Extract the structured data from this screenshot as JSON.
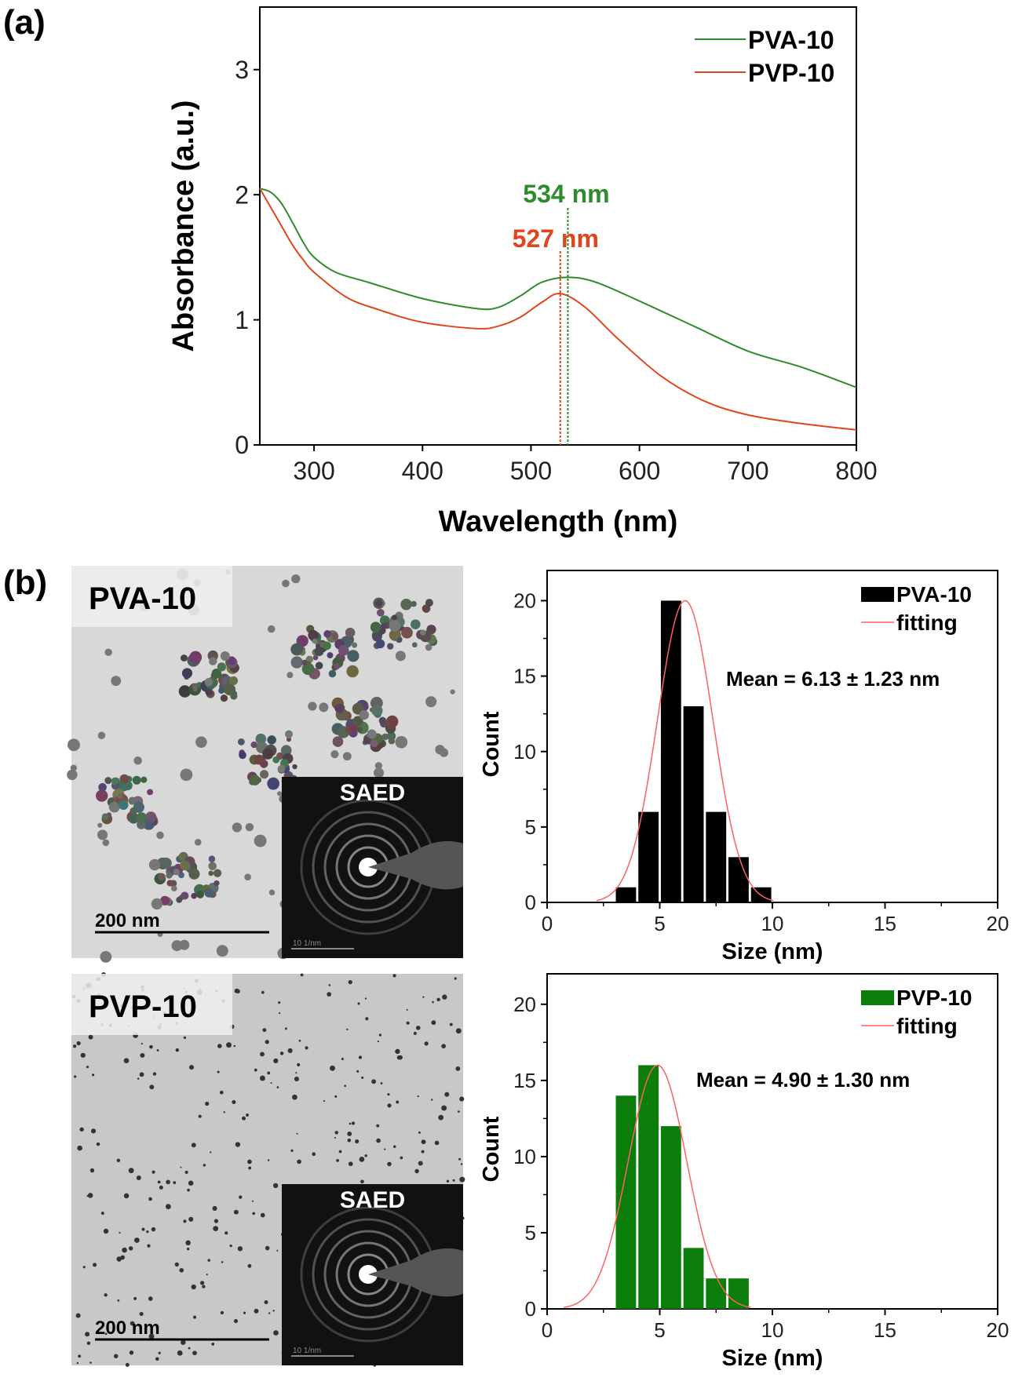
{
  "panel_labels": {
    "a": "(a)",
    "b": "(b)"
  },
  "colors": {
    "pva": "#2e8b2e",
    "pvp": "#e0461e",
    "fit": "#ff6060",
    "bar_pva": "#000000",
    "bar_pvp": "#0a7d0a"
  },
  "chart_data": [
    {
      "type": "line",
      "title": "",
      "xlabel": "Wavelength (nm)",
      "ylabel": "Absorbance (a.u.)",
      "xlim": [
        250,
        800
      ],
      "ylim": [
        0,
        3.5
      ],
      "xticks": [
        300,
        400,
        500,
        600,
        700,
        800
      ],
      "yticks": [
        0,
        1,
        2,
        3
      ],
      "legend_position": "top-right",
      "series": [
        {
          "name": "PVA-10",
          "color": "#2e8b2e",
          "x": [
            250,
            260,
            270,
            280,
            290,
            300,
            320,
            350,
            400,
            450,
            470,
            490,
            510,
            534,
            560,
            600,
            650,
            700,
            750,
            800
          ],
          "y": [
            2.05,
            2.02,
            1.93,
            1.78,
            1.62,
            1.5,
            1.38,
            1.3,
            1.17,
            1.09,
            1.1,
            1.19,
            1.3,
            1.34,
            1.3,
            1.15,
            0.95,
            0.75,
            0.62,
            0.46
          ]
        },
        {
          "name": "PVP-10",
          "color": "#e0461e",
          "x": [
            250,
            260,
            270,
            280,
            290,
            300,
            330,
            360,
            400,
            450,
            470,
            490,
            510,
            527,
            550,
            580,
            620,
            660,
            700,
            750,
            800
          ],
          "y": [
            2.05,
            1.9,
            1.75,
            1.6,
            1.48,
            1.38,
            1.18,
            1.08,
            0.98,
            0.93,
            0.95,
            1.02,
            1.14,
            1.21,
            1.1,
            0.85,
            0.55,
            0.35,
            0.24,
            0.17,
            0.12
          ]
        }
      ],
      "annotations": [
        {
          "text": "534 nm",
          "x": 534,
          "color": "#2e8b2e"
        },
        {
          "text": "527 nm",
          "x": 527,
          "color": "#e0461e"
        }
      ]
    },
    {
      "type": "bar",
      "xlabel": "Size (nm)",
      "ylabel": "Count",
      "xlim": [
        0,
        20
      ],
      "ylim": [
        0,
        22
      ],
      "xticks": [
        0,
        5,
        10,
        15,
        20
      ],
      "yticks": [
        0,
        5,
        10,
        15,
        20
      ],
      "legend_position": "top-right",
      "bin_centers": [
        3.5,
        4.5,
        5.5,
        6.5,
        7.5,
        8.5,
        9.5
      ],
      "values": [
        1,
        6,
        20,
        13,
        6,
        3,
        1
      ],
      "series_name": "PVA-10",
      "fit_name": "fitting",
      "fit": {
        "mean": 6.13,
        "sigma": 1.23,
        "amplitude": 20
      },
      "annotation": "Mean = 6.13 ± 1.23 nm"
    },
    {
      "type": "bar",
      "xlabel": "Size (nm)",
      "ylabel": "Count",
      "xlim": [
        0,
        20
      ],
      "ylim": [
        0,
        22
      ],
      "xticks": [
        0,
        5,
        10,
        15,
        20
      ],
      "yticks": [
        0,
        5,
        10,
        15,
        20
      ],
      "legend_position": "top-right",
      "bin_centers": [
        3.5,
        4.5,
        5.5,
        6.5,
        7.5,
        8.5
      ],
      "values": [
        14,
        16,
        12,
        4,
        2,
        2
      ],
      "series_name": "PVP-10",
      "fit_name": "fitting",
      "fit": {
        "mean": 4.9,
        "sigma": 1.3,
        "amplitude": 16
      },
      "annotation": "Mean = 4.90 ± 1.30 nm"
    }
  ],
  "tem_images": [
    {
      "label": "PVA-10",
      "scale_bar": "200 nm",
      "inset_label": "SAED",
      "inset_scale": "10 1/nm",
      "particle_style": "clusters"
    },
    {
      "label": "PVP-10",
      "scale_bar": "200 nm",
      "inset_label": "SAED",
      "inset_scale": "10 1/nm",
      "particle_style": "dispersed"
    }
  ]
}
